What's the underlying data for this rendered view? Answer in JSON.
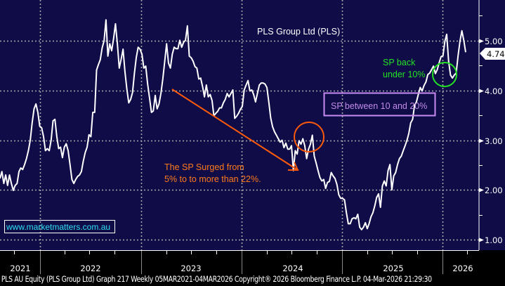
{
  "chart_data": {
    "type": "line",
    "title": "PLS Group Ltd (PLS)",
    "xlabel": "",
    "ylabel": "",
    "ylim": [
      0.7,
      5.8
    ],
    "yticks": [
      1.0,
      2.0,
      3.0,
      4.0,
      5.0
    ],
    "ytick_labels": [
      "1.00",
      "2.00",
      "3.00",
      "4.00",
      "5.00"
    ],
    "x_categories": [
      "2021",
      "2022",
      "2023",
      "2024",
      "2025",
      "2026"
    ],
    "grid": true,
    "last_price": 4.74,
    "last_price_label": "4.74",
    "series": [
      {
        "name": "PLS AU Equity",
        "x_start": "05MAR2021",
        "x_end": "04MAR2026",
        "values": [
          2.23,
          2.37,
          2.13,
          2.3,
          2.09,
          2.3,
          2.13,
          1.99,
          2.09,
          2.13,
          2.37,
          2.44,
          2.41,
          2.51,
          2.63,
          2.79,
          3.0,
          3.35,
          3.63,
          3.73,
          3.56,
          3.28,
          3.25,
          3.07,
          2.79,
          2.83,
          2.79,
          3.0,
          3.39,
          3.42,
          3.07,
          2.83,
          2.86,
          2.65,
          2.86,
          2.93,
          2.79,
          2.51,
          2.21,
          2.13,
          2.21,
          2.27,
          2.3,
          2.37,
          2.58,
          2.75,
          2.86,
          3.11,
          3.07,
          3.56,
          3.56,
          4.41,
          4.52,
          4.62,
          4.86,
          5.0,
          5.42,
          4.69,
          4.94,
          4.8,
          5.04,
          5.34,
          4.94,
          4.45,
          4.63,
          4.83,
          4.38,
          4.03,
          3.75,
          3.82,
          3.96,
          4.35,
          4.66,
          4.87,
          4.83,
          4.73,
          4.45,
          4.49,
          4.13,
          3.85,
          3.56,
          3.59,
          3.9,
          3.63,
          3.73,
          3.94,
          4.23,
          4.58,
          4.94,
          4.55,
          4.45,
          4.73,
          4.87,
          4.84,
          4.84,
          5.01,
          4.87,
          4.97,
          5.01,
          5.3,
          4.69,
          4.66,
          4.59,
          4.48,
          4.45,
          4.23,
          4.25,
          4.08,
          3.87,
          4.11,
          3.87,
          3.92,
          3.8,
          3.49,
          3.54,
          3.58,
          3.65,
          3.65,
          3.75,
          3.82,
          3.94,
          3.87,
          3.94,
          4.01,
          3.44,
          3.48,
          3.54,
          3.62,
          3.68,
          4.01,
          4.11,
          4.2,
          3.99,
          4.01,
          3.92,
          3.77,
          3.94,
          4.11,
          4.15,
          4.15,
          4.13,
          4.06,
          3.77,
          3.45,
          3.27,
          3.17,
          3.1,
          3.03,
          2.96,
          3.0,
          2.85,
          2.94,
          2.82,
          2.82,
          2.89,
          2.39,
          2.79,
          2.72,
          2.99,
          2.92,
          3.03,
          2.89,
          2.63,
          2.82,
          2.92,
          3.1,
          2.68,
          2.54,
          2.39,
          2.25,
          2.18,
          2.21,
          2.03,
          2.15,
          2.17,
          2.35,
          2.28,
          2.23,
          2.11,
          1.9,
          1.83,
          1.83,
          1.8,
          1.54,
          1.32,
          1.32,
          1.42,
          1.44,
          1.42,
          1.51,
          1.25,
          1.2,
          1.25,
          1.34,
          1.22,
          1.32,
          1.46,
          1.54,
          1.68,
          1.85,
          1.92,
          1.65,
          2.08,
          2.18,
          2.08,
          2.39,
          2.51,
          2.0,
          2.28,
          2.35,
          2.51,
          2.63,
          2.68,
          2.79,
          2.89,
          3.0,
          3.14,
          3.35,
          3.42,
          3.7,
          3.77,
          3.92,
          4.06,
          3.99,
          4.1,
          4.17,
          4.32,
          4.35,
          4.42,
          4.49,
          4.34,
          4.42,
          4.56,
          4.68,
          4.7,
          4.99,
          5.13,
          4.59,
          4.31,
          4.25,
          4.31,
          4.35,
          4.7,
          4.99,
          5.2,
          5.01,
          4.77
        ]
      }
    ],
    "annotations": [
      {
        "type": "text",
        "text_lines": [
          "The SP Surged from",
          "5% to to more than 22%."
        ],
        "color": "#FF7A1A"
      },
      {
        "type": "arrow",
        "color": "#FF5A0A"
      },
      {
        "type": "circle",
        "color": "#FF5A0A"
      },
      {
        "type": "text-box",
        "text": "SP between 10 and 20%",
        "color": "#C38BE8",
        "border": "#C98BF0"
      },
      {
        "type": "text",
        "text_lines": [
          "SP back",
          "under 10%"
        ],
        "color": "#22E322"
      },
      {
        "type": "circle",
        "color": "#22E322"
      },
      {
        "type": "text-box",
        "text": "www.marketmatters.com.au",
        "color": "#2FE0F5",
        "border": "#FFFFFF"
      }
    ]
  },
  "colors": {
    "background": "#0F0C48",
    "line": "#FFFFFF",
    "grid": "#A7A7A7",
    "axis_bg": "#000000"
  },
  "footer": {
    "text": "PLS AU Equity (PLS Group Ltd) Graph 217 Weekly 05MAR2021-04MAR2026 Copyright® 2026 Bloomberg Finance L.P.  04-Mar-2026 21:29:30"
  }
}
